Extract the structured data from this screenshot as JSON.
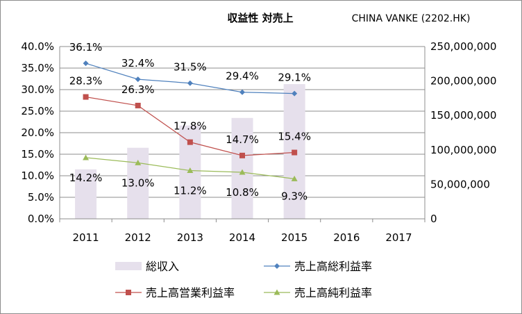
{
  "chart_data": {
    "type": "bar",
    "title": "収益性 対売上",
    "subtitle": "CHINA VANKE (2202.HK)",
    "categories": [
      "2011",
      "2012",
      "2013",
      "2014",
      "2015",
      "2016",
      "2017"
    ],
    "y_left": {
      "ylim": [
        0,
        40
      ],
      "ticks": [
        0,
        5,
        10,
        15,
        20,
        25,
        30,
        35,
        40
      ],
      "tick_labels": [
        "0.0%",
        "5.0%",
        "10.0%",
        "15.0%",
        "20.0%",
        "25.0%",
        "30.0%",
        "35.0%",
        "40.0%"
      ]
    },
    "y_right": {
      "ylim": [
        0,
        250000000
      ],
      "ticks": [
        0,
        50000000,
        100000000,
        150000000,
        200000000,
        250000000
      ],
      "tick_labels": [
        "0",
        "50,000,000",
        "100,000,000",
        "150,000,000",
        "200,000,000",
        "250,000,000"
      ]
    },
    "series": [
      {
        "name": "総収入",
        "type": "bar",
        "axis": "right",
        "color": "#e6e0ec",
        "values": [
          71800000,
          103100000,
          135400000,
          146400000,
          195500000,
          null,
          null
        ]
      },
      {
        "name": "売上高総利益率",
        "type": "line",
        "axis": "left",
        "color": "#4f81bd",
        "marker": "diamond",
        "values": [
          36.1,
          32.4,
          31.5,
          29.4,
          29.1,
          null,
          null
        ],
        "labels": [
          "36.1%",
          "32.4%",
          "31.5%",
          "29.4%",
          "29.1%",
          "",
          ""
        ]
      },
      {
        "name": "売上高営業利益率",
        "type": "line",
        "axis": "left",
        "color": "#c0504d",
        "marker": "square",
        "values": [
          28.3,
          26.3,
          17.8,
          14.7,
          15.4,
          null,
          null
        ],
        "labels": [
          "28.3%",
          "26.3%",
          "17.8%",
          "14.7%",
          "15.4%",
          "",
          ""
        ]
      },
      {
        "name": "売上高純利益率",
        "type": "line",
        "axis": "left",
        "color": "#9bbb59",
        "marker": "triangle",
        "values": [
          14.2,
          13.0,
          11.2,
          10.8,
          9.3,
          null,
          null
        ],
        "labels": [
          "14.2%",
          "13.0%",
          "11.2%",
          "10.8%",
          "9.3%",
          "",
          ""
        ]
      }
    ],
    "legend_position": "bottom",
    "grid": true
  }
}
